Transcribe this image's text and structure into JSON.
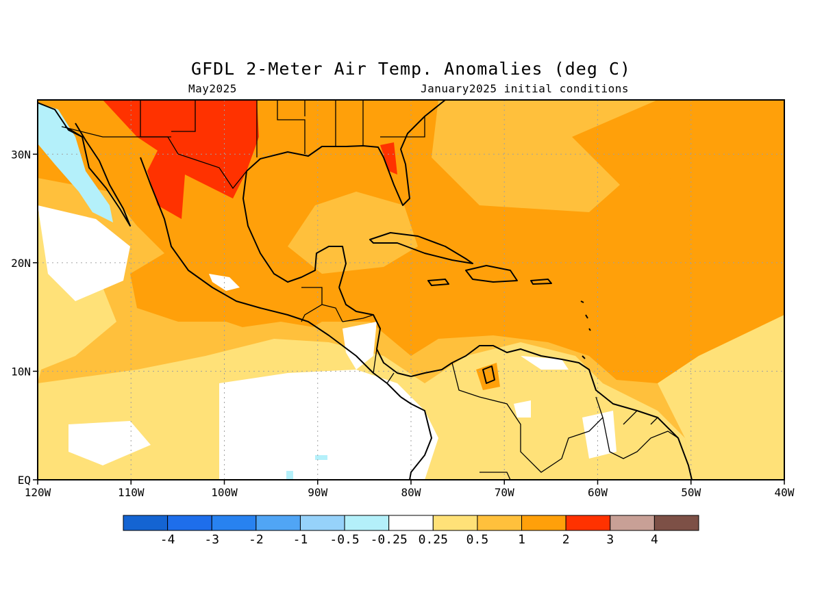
{
  "title": "GFDL 2-Meter Air Temp. Anomalies (deg C)",
  "subtitle_left": "May2025",
  "subtitle_right": "January2025 initial conditions",
  "map": {
    "lat_labels": [
      "30N",
      "20N",
      "10N",
      "EQ"
    ],
    "lat_values": [
      30,
      20,
      10,
      0
    ],
    "lon_labels": [
      "120W",
      "110W",
      "100W",
      "90W",
      "80W",
      "70W",
      "60W",
      "50W",
      "40W"
    ],
    "lon_values": [
      -120,
      -110,
      -100,
      -90,
      -80,
      -70,
      -60,
      -50,
      -40
    ],
    "extent": {
      "lon": [
        -120,
        -40
      ],
      "lat": [
        0,
        35
      ]
    },
    "grid": "dotted"
  },
  "colors": {
    "ocean_anom_1_2": "#FFA00A",
    "anom_05_1": "#FFC03C",
    "anom_025_05": "#FFE178",
    "anom_2_3": "#FF3200",
    "neutral": "#FFFFFF",
    "anom_neg_025_05": "#B4F0FA",
    "coast": "#000000"
  },
  "legend": {
    "colors": [
      "#1464D2",
      "#1E6EEB",
      "#2882F0",
      "#50A5F5",
      "#96D2FA",
      "#B4F0FA",
      "#FFFFFF",
      "#FFE178",
      "#FFC03C",
      "#FFA00A",
      "#FF3200",
      "#C8A096",
      "#7D5046"
    ],
    "labels": [
      "-4",
      "-3",
      "-2",
      "-1",
      "-0.5",
      "-0.25",
      "0.25",
      "0.5",
      "1",
      "2",
      "3",
      "4"
    ]
  }
}
